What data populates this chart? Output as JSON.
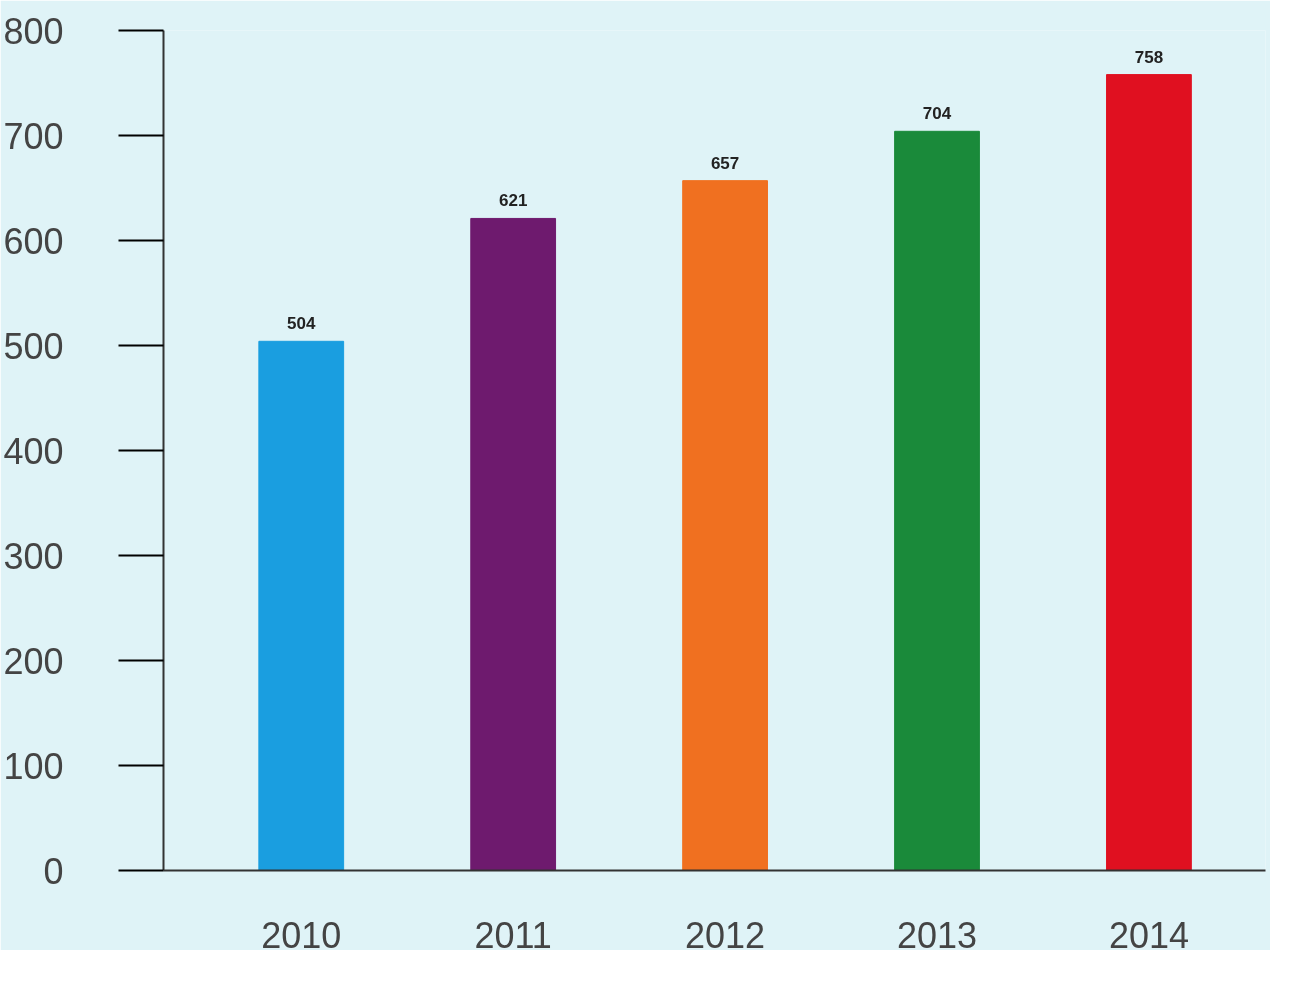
{
  "chart_data": {
    "type": "bar",
    "categories": [
      "2010",
      "2011",
      "2012",
      "2013",
      "2014"
    ],
    "values": [
      504,
      621,
      657,
      704,
      758
    ],
    "colors": [
      "#1a9ee0",
      "#6e1a6e",
      "#f07020",
      "#1a8a3a",
      "#e01020"
    ],
    "ylim": [
      0,
      800
    ],
    "yticks": [
      0,
      100,
      200,
      300,
      400,
      500,
      600,
      700,
      800
    ],
    "data_labels": true,
    "grid": false
  }
}
